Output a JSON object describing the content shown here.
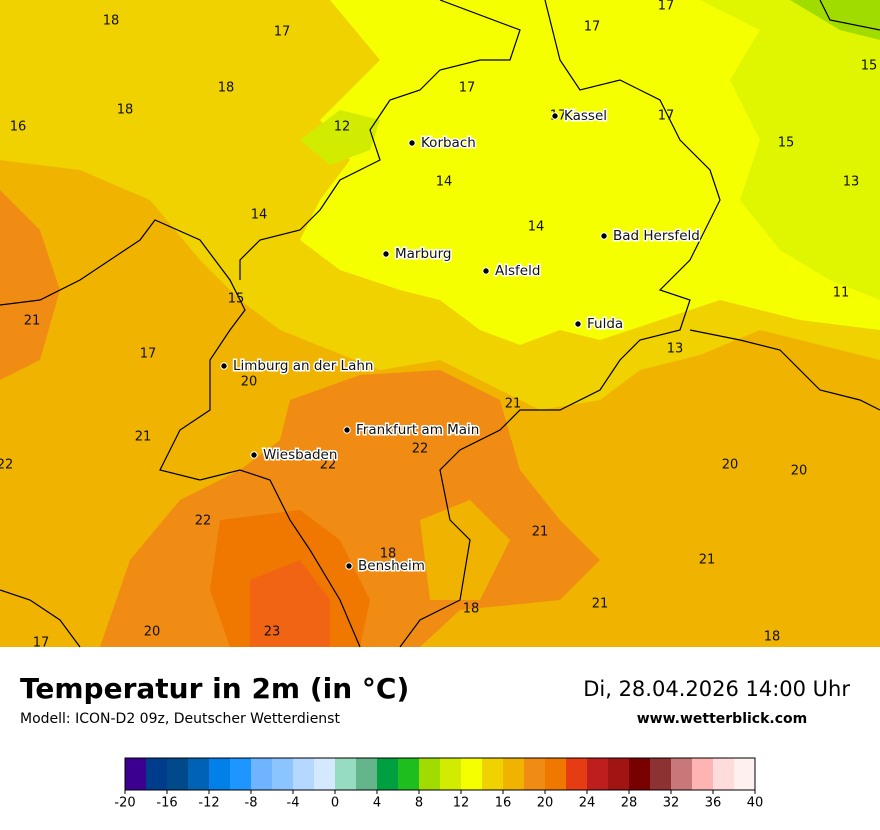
{
  "map": {
    "temperatures": [
      18,
      17,
      17,
      17,
      18,
      17,
      15,
      18,
      16,
      12,
      17,
      17,
      15,
      14,
      13,
      14,
      14,
      15,
      11,
      21,
      17,
      13,
      20,
      21,
      21,
      22,
      22,
      22,
      20,
      20,
      22,
      21,
      18,
      21,
      21,
      18,
      17,
      20,
      23,
      18
    ],
    "cities": [
      "Korbach",
      "Kassel",
      "Marburg",
      "Alsfeld",
      "Bad Hersfeld",
      "Fulda",
      "Limburg an der Lahn",
      "Frankfurt am Main",
      "Wiesbaden",
      "Bensheim"
    ]
  },
  "footer": {
    "title": "Temperatur in 2m (in °C)",
    "subtitle": "Modell: ICON-D2 09z, Deutscher Wetterdienst",
    "date": "Di, 28.04.2026 14:00 Uhr",
    "website": "www.wetterblick.com"
  },
  "colorbar": {
    "colors": [
      "#3c0090",
      "#003c8c",
      "#004a8c",
      "#0062b4",
      "#0080e8",
      "#1e96ff",
      "#6eb4ff",
      "#8cc4ff",
      "#b4d8ff",
      "#d4e8ff",
      "#96dcc0",
      "#64b48c",
      "#00a040",
      "#1ebe1e",
      "#a0dc00",
      "#d2ec00",
      "#f5ff00",
      "#f0d200",
      "#f0b400",
      "#f08c14",
      "#f07800",
      "#e63c14",
      "#be1e1e",
      "#a01414",
      "#780000",
      "#8c3232",
      "#c87878",
      "#ffb4b4",
      "#ffdcdc",
      "#fff0f0"
    ],
    "ticks": [
      -20,
      -16,
      -12,
      -8,
      -4,
      0,
      4,
      8,
      12,
      16,
      20,
      24,
      28,
      32,
      36,
      40
    ]
  }
}
